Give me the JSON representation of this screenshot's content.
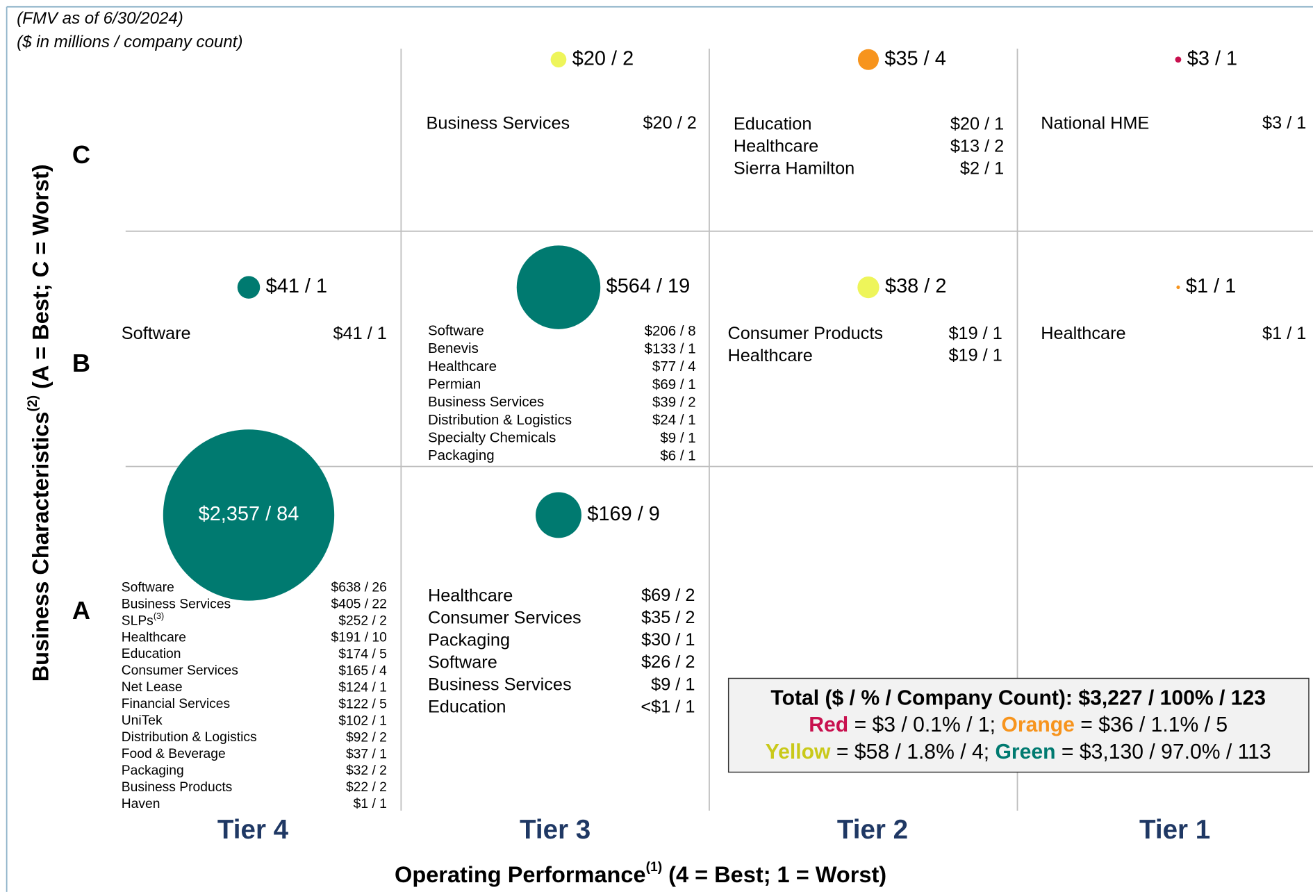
{
  "header": {
    "lines": [
      "(FMV as of 6/30/2024)",
      "($ in millions / company count)"
    ]
  },
  "y_axis": {
    "title": "Business Characteristics",
    "sup": "(2)",
    "suffix": " (A = Best; C = Worst)"
  },
  "x_axis": {
    "title": "Operating Performance",
    "sup": "(1)",
    "suffix": " (4 = Best; 1 = Worst)"
  },
  "rows": [
    "C",
    "B",
    "A"
  ],
  "columns": [
    "Tier 4",
    "Tier 3",
    "Tier 2",
    "Tier 1"
  ],
  "cells": [
    [
      null,
      {
        "fmv": 20,
        "label": "$20 / 2",
        "color": "#eef55a",
        "items": [
          {
            "name": "Business Services",
            "value": "$20 / 2"
          }
        ]
      },
      {
        "fmv": 35,
        "label": "$35 / 4",
        "color": "#f7941d",
        "items": [
          {
            "name": "Education",
            "value": "$20 / 1"
          },
          {
            "name": "Healthcare",
            "value": "$13 / 2"
          },
          {
            "name": "Sierra Hamilton",
            "value": "$2 / 1"
          }
        ]
      },
      {
        "fmv": 3,
        "label": "$3 / 1",
        "color": "#c8104e",
        "items": [
          {
            "name": "National HME",
            "value": "$3 / 1"
          }
        ]
      }
    ],
    [
      {
        "fmv": 41,
        "label": "$41 / 1",
        "color": "#007a70",
        "items": [
          {
            "name": "Software",
            "value": "$41 / 1"
          }
        ]
      },
      {
        "fmv": 564,
        "label": "$564 / 19",
        "color": "#007a70",
        "items": [
          {
            "name": "Software",
            "value": "$206 / 8"
          },
          {
            "name": "Benevis",
            "value": "$133 / 1"
          },
          {
            "name": "Healthcare",
            "value": "$77 / 4"
          },
          {
            "name": "Permian",
            "value": "$69 / 1"
          },
          {
            "name": "Business Services",
            "value": "$39 / 2"
          },
          {
            "name": "Distribution & Logistics",
            "value": "$24 / 1"
          },
          {
            "name": "Specialty Chemicals",
            "value": "$9 / 1"
          },
          {
            "name": "Packaging",
            "value": "$6 / 1"
          }
        ]
      },
      {
        "fmv": 38,
        "label": "$38 / 2",
        "color": "#eef55a",
        "items": [
          {
            "name": "Consumer Products",
            "value": "$19 / 1"
          },
          {
            "name": "Healthcare",
            "value": "$19 / 1"
          }
        ]
      },
      {
        "fmv": 1,
        "label": "$1 / 1",
        "color": "#f7941d",
        "items": [
          {
            "name": "Healthcare",
            "value": "$1 / 1"
          }
        ]
      }
    ],
    [
      {
        "fmv": 2357,
        "label": "$2,357 / 84",
        "color": "#007a70",
        "items": [
          {
            "name": "Software",
            "value": "$638 / 26"
          },
          {
            "name": "Business Services",
            "value": "$405 / 22"
          },
          {
            "name": "SLPs",
            "sup": "(3)",
            "value": "$252 / 2"
          },
          {
            "name": "Healthcare",
            "value": "$191 / 10"
          },
          {
            "name": "Education",
            "value": "$174 / 5"
          },
          {
            "name": "Consumer Services",
            "value": "$165 / 4"
          },
          {
            "name": "Net Lease",
            "value": "$124 / 1"
          },
          {
            "name": "Financial Services",
            "value": "$122 / 5"
          },
          {
            "name": "UniTek",
            "value": "$102 / 1"
          },
          {
            "name": "Distribution & Logistics",
            "value": "$92 / 2"
          },
          {
            "name": "Food & Beverage",
            "value": "$37 / 1"
          },
          {
            "name": "Packaging",
            "value": "$32 / 2"
          },
          {
            "name": "Business Products",
            "value": "$22 / 2"
          },
          {
            "name": "Haven",
            "value": "$1 / 1"
          }
        ]
      },
      {
        "fmv": 169,
        "label": "$169 / 9",
        "color": "#007a70",
        "items": [
          {
            "name": "Healthcare",
            "value": "$69 / 2"
          },
          {
            "name": "Consumer Services",
            "value": "$35 / 2"
          },
          {
            "name": "Packaging",
            "value": "$30 / 1"
          },
          {
            "name": "Software",
            "value": "$26 / 2"
          },
          {
            "name": "Business Services",
            "value": "$9 / 1"
          },
          {
            "name": "Education",
            "value": "<$1 / 1"
          }
        ]
      },
      null,
      null
    ]
  ],
  "total": {
    "line1": "Total ($ / % / Company Count): $3,227 / 100% / 123",
    "red": "Red",
    "red_text": " = $3 / 0.1% / 1; ",
    "orange": "Orange",
    "orange_text": " = $36 / 1.1% / 5",
    "yellow": "Yellow",
    "yellow_text": " = $58 / 1.8% / 4; ",
    "green": "Green",
    "green_text": " = $3,130 / 97.0% / 113"
  }
}
